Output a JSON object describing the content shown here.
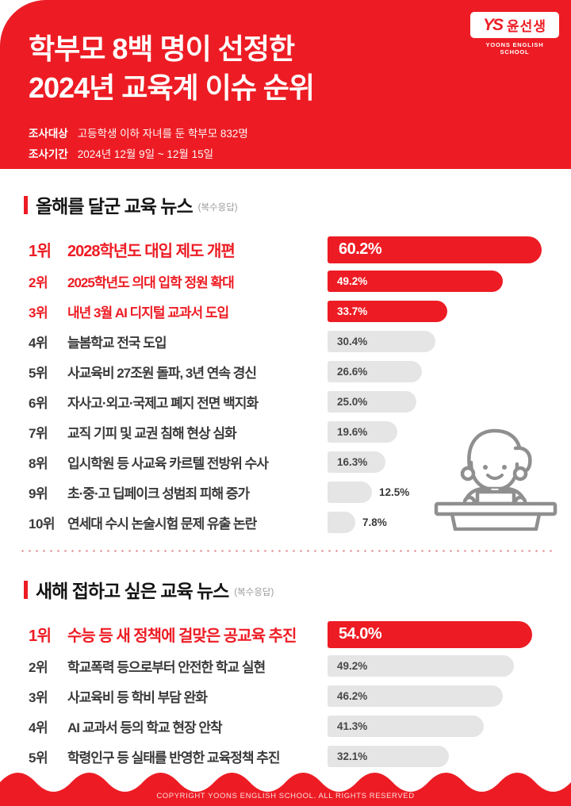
{
  "brand": {
    "logo_monogram": "YS",
    "logo_text": "윤선생",
    "logo_subtext": "YOONS ENGLISH SCHOOL"
  },
  "header": {
    "title_line1": "학부모 8백 명이 선정한",
    "title_line2": "2024년 교육계 이슈 순위",
    "survey": [
      {
        "label": "조사대상",
        "value": "고등학생 이하 자녀를 둔 학부모 832명"
      },
      {
        "label": "조사기간",
        "value": "2024년 12월 9일 ~ 12월 15일"
      }
    ]
  },
  "colors": {
    "brand_red": "#ED1C24",
    "bar_gray": "#E5E5E5",
    "text_dark": "#3A3A3A",
    "note_gray": "#9A9A9A"
  },
  "chart_data": [
    {
      "type": "bar",
      "title": "올해를 달군 교육 뉴스",
      "note": "(복수응답)",
      "unit": "%",
      "xlim": [
        0,
        65
      ],
      "orientation": "horizontal",
      "items": [
        {
          "rank": "1위",
          "label": "2028학년도 대입 제도 개편",
          "value": 60.2,
          "highlight": true,
          "big": true
        },
        {
          "rank": "2위",
          "label": "2025학년도 의대 입학 정원 확대",
          "value": 49.2,
          "highlight": true,
          "big": false
        },
        {
          "rank": "3위",
          "label": "내년 3월 AI 디지털 교과서 도입",
          "value": 33.7,
          "highlight": true,
          "big": false
        },
        {
          "rank": "4위",
          "label": "늘봄학교 전국 도입",
          "value": 30.4,
          "highlight": false,
          "big": false
        },
        {
          "rank": "5위",
          "label": "사교육비 27조원 돌파, 3년 연속 경신",
          "value": 26.6,
          "highlight": false,
          "big": false
        },
        {
          "rank": "6위",
          "label": "자사고·외고·국제고 폐지 전면 백지화",
          "value": 25.0,
          "highlight": false,
          "big": false
        },
        {
          "rank": "7위",
          "label": "교직 기피 및 교권 침해 현상 심화",
          "value": 19.6,
          "highlight": false,
          "big": false
        },
        {
          "rank": "8위",
          "label": "입시학원 등 사교육 카르텔 전방위 수사",
          "value": 16.3,
          "highlight": false,
          "big": false
        },
        {
          "rank": "9위",
          "label": "초·중·고 딥페이크 성범죄 피해 증가",
          "value": 12.5,
          "highlight": false,
          "big": false
        },
        {
          "rank": "10위",
          "label": "연세대 수시 논술시험 문제 유출 논란",
          "value": 7.8,
          "highlight": false,
          "big": false
        }
      ]
    },
    {
      "type": "bar",
      "title": "새해 접하고 싶은 교육 뉴스",
      "note": "(복수응답)",
      "unit": "%",
      "xlim": [
        0,
        60
      ],
      "orientation": "horizontal",
      "items": [
        {
          "rank": "1위",
          "label": "수능 등 새 정책에 걸맞은 공교육 추진",
          "value": 54.0,
          "highlight": true,
          "big": true
        },
        {
          "rank": "2위",
          "label": "학교폭력 등으로부터 안전한 학교 실현",
          "value": 49.2,
          "highlight": false,
          "big": false
        },
        {
          "rank": "3위",
          "label": "사교육비 등 학비 부담 완화",
          "value": 46.2,
          "highlight": false,
          "big": false
        },
        {
          "rank": "4위",
          "label": "AI 교과서 등의 학교 현장 안착",
          "value": 41.3,
          "highlight": false,
          "big": false
        },
        {
          "rank": "5위",
          "label": "학령인구 등 실태를 반영한 교육정책 추진",
          "value": 32.1,
          "highlight": false,
          "big": false
        }
      ]
    }
  ],
  "footer": {
    "copyright": "COPYRIGHT YOONS ENGLISH SCHOOL. ALL RIGHTS RESERVED"
  }
}
